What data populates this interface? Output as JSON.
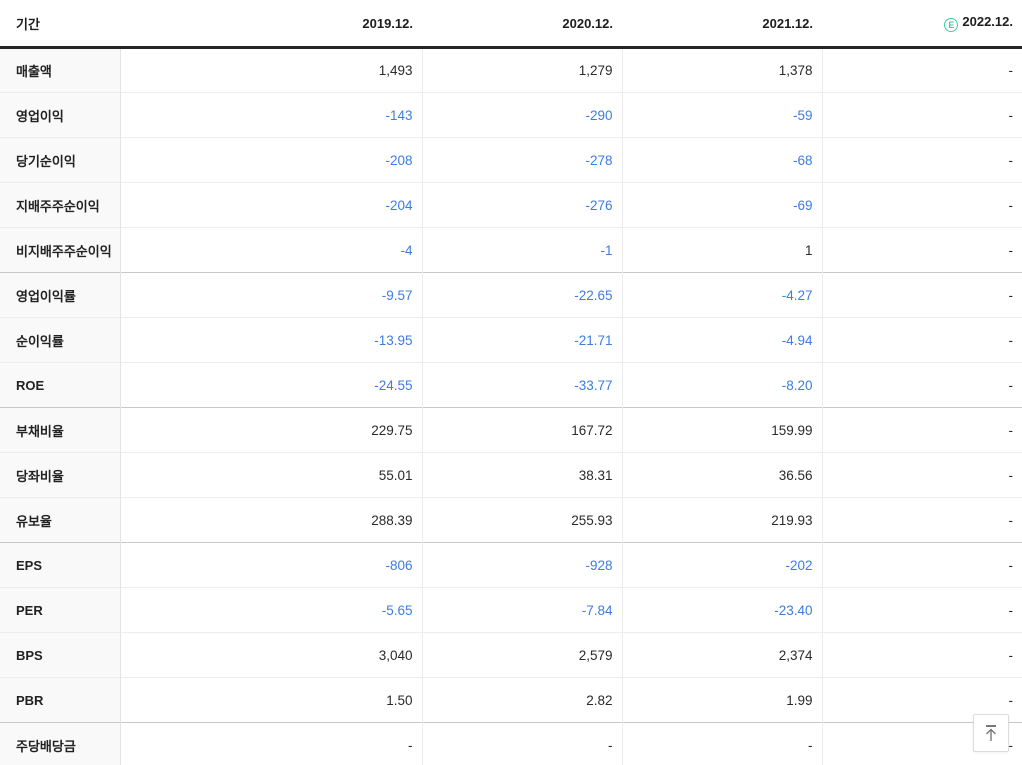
{
  "table": {
    "period_column_header": "기간",
    "columns": [
      {
        "label": "2019.12.",
        "estimate": false
      },
      {
        "label": "2020.12.",
        "estimate": false
      },
      {
        "label": "2021.12.",
        "estimate": false
      },
      {
        "label": "2022.12.",
        "estimate": true
      }
    ],
    "estimate_icon_letter": "E",
    "rows": [
      {
        "label": "매출액",
        "section_start": false,
        "values": [
          "1,493",
          "1,279",
          "1,378",
          "-"
        ]
      },
      {
        "label": "영업이익",
        "section_start": false,
        "values": [
          "-143",
          "-290",
          "-59",
          "-"
        ]
      },
      {
        "label": "당기순이익",
        "section_start": false,
        "values": [
          "-208",
          "-278",
          "-68",
          "-"
        ]
      },
      {
        "label": "지배주주순이익",
        "section_start": false,
        "values": [
          "-204",
          "-276",
          "-69",
          "-"
        ]
      },
      {
        "label": "비지배주주순이익",
        "section_start": false,
        "values": [
          "-4",
          "-1",
          "1",
          "-"
        ]
      },
      {
        "label": "영업이익률",
        "section_start": true,
        "values": [
          "-9.57",
          "-22.65",
          "-4.27",
          "-"
        ]
      },
      {
        "label": "순이익률",
        "section_start": false,
        "values": [
          "-13.95",
          "-21.71",
          "-4.94",
          "-"
        ]
      },
      {
        "label": "ROE",
        "section_start": false,
        "values": [
          "-24.55",
          "-33.77",
          "-8.20",
          "-"
        ]
      },
      {
        "label": "부채비율",
        "section_start": true,
        "values": [
          "229.75",
          "167.72",
          "159.99",
          "-"
        ]
      },
      {
        "label": "당좌비율",
        "section_start": false,
        "values": [
          "55.01",
          "38.31",
          "36.56",
          "-"
        ]
      },
      {
        "label": "유보율",
        "section_start": false,
        "values": [
          "288.39",
          "255.93",
          "219.93",
          "-"
        ]
      },
      {
        "label": "EPS",
        "section_start": true,
        "values": [
          "-806",
          "-928",
          "-202",
          "-"
        ]
      },
      {
        "label": "PER",
        "section_start": false,
        "values": [
          "-5.65",
          "-7.84",
          "-23.40",
          "-"
        ]
      },
      {
        "label": "BPS",
        "section_start": false,
        "values": [
          "3,040",
          "2,579",
          "2,374",
          "-"
        ]
      },
      {
        "label": "PBR",
        "section_start": false,
        "values": [
          "1.50",
          "2.82",
          "1.99",
          "-"
        ]
      },
      {
        "label": "주당배당금",
        "section_start": true,
        "values": [
          "-",
          "-",
          "-",
          "-"
        ]
      }
    ]
  },
  "colors": {
    "negative_value": "#3d7ce0",
    "positive_value": "#2a2a2a",
    "estimate_green": "#3fcfa2"
  },
  "scroll_top_button": {
    "icon": "arrow-up-to-top"
  }
}
